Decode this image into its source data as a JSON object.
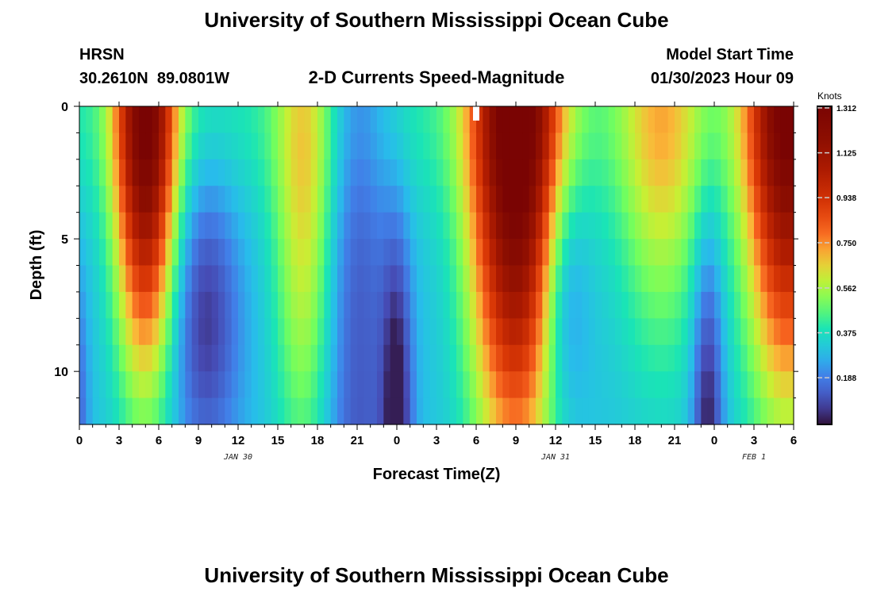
{
  "chart_data": {
    "type": "heatmap",
    "title": "University of Southern Mississippi Ocean Cube",
    "footer_title": "University of Southern Mississippi Ocean Cube",
    "station": "HRSN",
    "coordinates": "30.2610N  89.0801W",
    "subtitle": "2-D Currents Speed-Magnitude",
    "model_start_label": "Model Start Time",
    "model_start_value": "01/30/2023 Hour 09",
    "xlabel": "Forecast Time(Z)",
    "ylabel": "Depth (ft)",
    "x_range_hours": [
      0,
      54
    ],
    "x_ticks": [
      0,
      3,
      6,
      9,
      12,
      15,
      18,
      21,
      24,
      27,
      30,
      33,
      36,
      39,
      42,
      45,
      48,
      51,
      54
    ],
    "x_tick_labels": [
      "0",
      "3",
      "6",
      "9",
      "12",
      "15",
      "18",
      "21",
      "0",
      "3",
      "6",
      "9",
      "12",
      "15",
      "18",
      "21",
      "0",
      "3",
      "6"
    ],
    "date_labels": [
      {
        "text": "JAN 30",
        "hour": 12
      },
      {
        "text": "JAN 31",
        "hour": 36
      },
      {
        "text": "FEB 1",
        "hour": 51
      }
    ],
    "y_range_ft": [
      0,
      12
    ],
    "y_ticks": [
      0,
      5,
      10
    ],
    "y_tick_labels": [
      "0",
      "5",
      "10"
    ],
    "colorbar": {
      "unit": "Knots",
      "range": [
        0,
        1.312
      ],
      "ticks": [
        1.312,
        1.125,
        0.938,
        0.75,
        0.562,
        0.375,
        0.188
      ],
      "tick_labels": [
        "1.312",
        "1.125",
        "0.938",
        "0.750",
        "0.562",
        "0.375",
        "0.188"
      ]
    },
    "approx_peaks": [
      {
        "hours": [
          3,
          7
        ],
        "depth_ft": [
          0,
          8
        ],
        "speed_kn": 1.2
      },
      {
        "hours": [
          30,
          36
        ],
        "depth_ft": [
          0,
          10
        ],
        "speed_kn": 1.3
      },
      {
        "hours": [
          50,
          54
        ],
        "depth_ft": [
          0,
          9
        ],
        "speed_kn": 1.2
      }
    ],
    "approx_minima": [
      {
        "hour": 24,
        "depth_ft": [
          7,
          12
        ],
        "speed_kn": 0.05
      },
      {
        "hour": 47.5,
        "depth_ft": [
          7,
          12
        ],
        "speed_kn": 0.02
      }
    ]
  }
}
